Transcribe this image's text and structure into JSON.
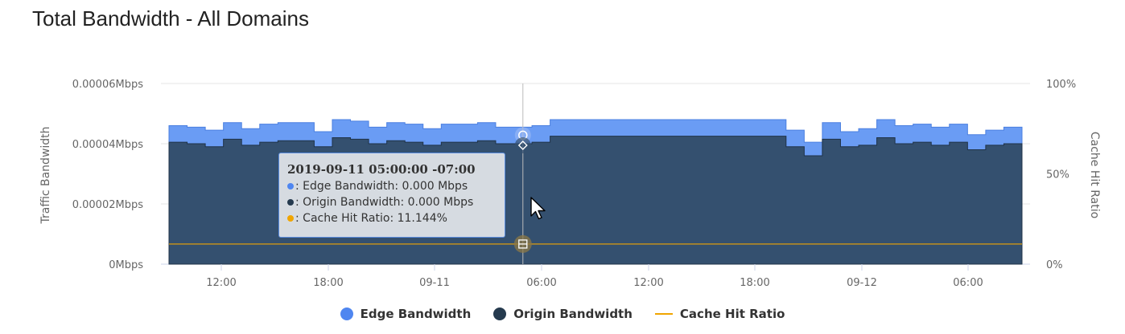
{
  "title": "Total Bandwidth - All Domains",
  "chart_data": {
    "type": "area",
    "title": "Total Bandwidth - All Domains",
    "ylabel": "Traffic Bandwidth",
    "y2label": "Cache Hit Ratio",
    "ylim": [
      0,
      6e-05
    ],
    "y2lim": [
      0,
      100
    ],
    "y_ticks": [
      "0Mbps",
      "0.00002Mbps",
      "0.00004Mbps",
      "0.00006Mbps"
    ],
    "y2_ticks": [
      "0%",
      "50%",
      "100%"
    ],
    "x_ticks": [
      "12:00",
      "18:00",
      "09-11",
      "06:00",
      "12:00",
      "18:00",
      "09-12",
      "06:00"
    ],
    "legend_position": "bottom",
    "grid": true,
    "series": [
      {
        "name": "Edge Bandwidth",
        "color": "#6a9cf4",
        "values": [
          4.6e-05,
          4.55e-05,
          4.45e-05,
          4.7e-05,
          4.5e-05,
          4.65e-05,
          4.7e-05,
          4.7e-05,
          4.4e-05,
          4.8e-05,
          4.75e-05,
          4.55e-05,
          4.7e-05,
          4.65e-05,
          4.5e-05,
          4.65e-05,
          4.65e-05,
          4.7e-05,
          4.55e-05,
          0.0,
          4.6e-05,
          4.8e-05,
          4.8e-05,
          4.8e-05,
          4.8e-05,
          4.8e-05,
          4.8e-05,
          4.8e-05,
          4.8e-05,
          4.8e-05,
          4.8e-05,
          4.8e-05,
          4.8e-05,
          4.8e-05,
          4.45e-05,
          4.05e-05,
          4.7e-05,
          4.4e-05,
          4.5e-05,
          4.8e-05,
          4.6e-05,
          4.65e-05,
          4.55e-05,
          4.65e-05,
          4.3e-05,
          4.45e-05,
          4.55e-05
        ]
      },
      {
        "name": "Origin Bandwidth",
        "color": "#34506f",
        "values": [
          4.05e-05,
          4e-05,
          3.9e-05,
          4.15e-05,
          3.95e-05,
          4.05e-05,
          4.1e-05,
          4.1e-05,
          3.9e-05,
          4.2e-05,
          4.15e-05,
          4e-05,
          4.1e-05,
          4.05e-05,
          3.95e-05,
          4.05e-05,
          4.05e-05,
          4.1e-05,
          4e-05,
          0.0,
          4.05e-05,
          4.25e-05,
          4.25e-05,
          4.25e-05,
          4.25e-05,
          4.25e-05,
          4.25e-05,
          4.25e-05,
          4.25e-05,
          4.25e-05,
          4.25e-05,
          4.25e-05,
          4.25e-05,
          4.25e-05,
          3.9e-05,
          3.6e-05,
          4.15e-05,
          3.9e-05,
          3.95e-05,
          4.2e-05,
          4e-05,
          4.05e-05,
          3.95e-05,
          4.05e-05,
          3.8e-05,
          3.95e-05,
          4e-05
        ]
      },
      {
        "name": "Cache Hit Ratio",
        "color": "#f0a500",
        "axis": "right",
        "value": 11.144
      }
    ]
  },
  "tooltip": {
    "title": "2019-09-11 05:00:00 -07:00",
    "edge": ": Edge Bandwidth: 0.000 Mbps",
    "origin": ": Origin Bandwidth: 0.000 Mbps",
    "ratio": ": Cache Hit Ratio: 11.144%",
    "index": 19
  },
  "legend": {
    "edge": "Edge Bandwidth",
    "origin": "Origin Bandwidth",
    "ratio": "Cache Hit Ratio"
  }
}
